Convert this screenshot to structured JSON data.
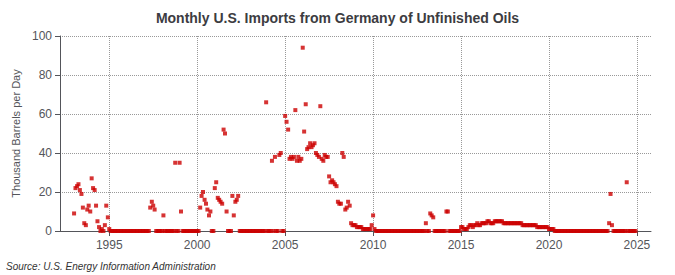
{
  "chart_data": {
    "type": "scatter",
    "title": "Monthly U.S. Imports from Germany of Unfinished Oils",
    "ylabel": "Thousand Barrels per Day",
    "annotation": "Source: U.S. Energy Information Administration",
    "color": "#cc0000",
    "marker": "square",
    "grid": true,
    "xlim": [
      1992.2,
      2025.8
    ],
    "xticks": [
      1995,
      2000,
      2005,
      2010,
      2015,
      2020,
      2025
    ],
    "ylim": [
      0,
      100
    ],
    "yticks": [
      0,
      20,
      40,
      60,
      80,
      100
    ],
    "x": [
      1993.0,
      1993.08,
      1993.17,
      1993.25,
      1993.33,
      1993.42,
      1993.5,
      1993.58,
      1993.67,
      1993.75,
      1993.83,
      1993.92,
      1994.0,
      1994.08,
      1994.17,
      1994.25,
      1994.33,
      1994.42,
      1994.5,
      1994.58,
      1994.67,
      1994.75,
      1994.83,
      1994.92,
      1995.0,
      1995.08,
      1995.17,
      1995.25,
      1995.33,
      1995.42,
      1995.5,
      1995.58,
      1995.67,
      1995.75,
      1995.83,
      1995.92,
      1996.0,
      1996.08,
      1996.17,
      1996.25,
      1996.33,
      1996.42,
      1996.5,
      1996.58,
      1996.67,
      1996.75,
      1996.83,
      1996.92,
      1997.0,
      1997.08,
      1997.17,
      1997.25,
      1997.33,
      1997.42,
      1997.5,
      1997.58,
      1997.67,
      1997.75,
      1997.83,
      1997.92,
      1998.0,
      1998.08,
      1998.17,
      1998.25,
      1998.33,
      1998.42,
      1998.5,
      1998.58,
      1998.67,
      1998.75,
      1998.83,
      1998.92,
      1999.0,
      1999.08,
      1999.17,
      1999.25,
      1999.33,
      1999.42,
      1999.5,
      1999.58,
      1999.67,
      1999.75,
      1999.83,
      1999.92,
      2000.0,
      2000.08,
      2000.17,
      2000.25,
      2000.33,
      2000.42,
      2000.5,
      2000.58,
      2000.67,
      2000.75,
      2000.83,
      2000.92,
      2001.0,
      2001.08,
      2001.17,
      2001.25,
      2001.33,
      2001.42,
      2001.5,
      2001.58,
      2001.67,
      2001.75,
      2001.83,
      2001.92,
      2002.0,
      2002.08,
      2002.17,
      2002.25,
      2002.33,
      2002.42,
      2002.5,
      2002.58,
      2002.67,
      2002.75,
      2002.83,
      2002.92,
      2003.0,
      2003.08,
      2003.17,
      2003.25,
      2003.33,
      2003.42,
      2003.5,
      2003.58,
      2003.67,
      2003.75,
      2003.83,
      2003.92,
      2004.0,
      2004.08,
      2004.17,
      2004.25,
      2004.33,
      2004.42,
      2004.5,
      2004.58,
      2004.67,
      2004.75,
      2004.83,
      2004.92,
      2005.0,
      2005.08,
      2005.17,
      2005.25,
      2005.33,
      2005.42,
      2005.5,
      2005.58,
      2005.67,
      2005.75,
      2005.83,
      2005.92,
      2006.0,
      2006.08,
      2006.17,
      2006.25,
      2006.33,
      2006.42,
      2006.5,
      2006.58,
      2006.67,
      2006.75,
      2006.83,
      2006.92,
      2007.0,
      2007.08,
      2007.17,
      2007.25,
      2007.33,
      2007.42,
      2007.5,
      2007.58,
      2007.67,
      2007.75,
      2007.83,
      2007.92,
      2008.0,
      2008.08,
      2008.17,
      2008.25,
      2008.33,
      2008.42,
      2008.5,
      2008.58,
      2008.67,
      2008.75,
      2008.83,
      2008.92,
      2009.0,
      2009.08,
      2009.17,
      2009.25,
      2009.33,
      2009.42,
      2009.5,
      2009.58,
      2009.67,
      2009.75,
      2009.83,
      2009.92,
      2010.0,
      2010.08,
      2010.17,
      2010.25,
      2010.33,
      2010.42,
      2010.5,
      2010.58,
      2010.67,
      2010.75,
      2010.83,
      2010.92,
      2011.0,
      2011.08,
      2011.17,
      2011.25,
      2011.33,
      2011.42,
      2011.5,
      2011.58,
      2011.67,
      2011.75,
      2011.83,
      2011.92,
      2012.0,
      2012.08,
      2012.17,
      2012.25,
      2012.33,
      2012.42,
      2012.5,
      2012.58,
      2012.67,
      2012.75,
      2012.83,
      2012.92,
      2013.0,
      2013.08,
      2013.17,
      2013.25,
      2013.33,
      2013.42,
      2013.5,
      2013.58,
      2013.67,
      2013.75,
      2013.83,
      2013.92,
      2014.0,
      2014.08,
      2014.17,
      2014.25,
      2014.33,
      2014.42,
      2014.5,
      2014.58,
      2014.67,
      2014.75,
      2014.83,
      2014.92,
      2015.0,
      2015.08,
      2015.17,
      2015.25,
      2015.33,
      2015.42,
      2015.5,
      2015.58,
      2015.67,
      2015.75,
      2015.83,
      2015.92,
      2016.0,
      2016.08,
      2016.17,
      2016.25,
      2016.33,
      2016.42,
      2016.5,
      2016.58,
      2016.67,
      2016.75,
      2016.83,
      2016.92,
      2017.0,
      2017.08,
      2017.17,
      2017.25,
      2017.33,
      2017.42,
      2017.5,
      2017.58,
      2017.67,
      2017.75,
      2017.83,
      2017.92,
      2018.0,
      2018.08,
      2018.17,
      2018.25,
      2018.33,
      2018.42,
      2018.5,
      2018.58,
      2018.67,
      2018.75,
      2018.83,
      2018.92,
      2019.0,
      2019.08,
      2019.17,
      2019.25,
      2019.33,
      2019.42,
      2019.5,
      2019.58,
      2019.67,
      2019.75,
      2019.83,
      2019.92,
      2020.0,
      2020.08,
      2020.17,
      2020.25,
      2020.33,
      2020.42,
      2020.5,
      2020.58,
      2020.67,
      2020.75,
      2020.83,
      2020.92,
      2021.0,
      2021.08,
      2021.17,
      2021.25,
      2021.33,
      2021.42,
      2021.5,
      2021.58,
      2021.67,
      2021.75,
      2021.83,
      2021.92,
      2022.0,
      2022.08,
      2022.17,
      2022.25,
      2022.33,
      2022.42,
      2022.5,
      2022.58,
      2022.67,
      2022.75,
      2022.83,
      2022.92,
      2023.0,
      2023.08,
      2023.17,
      2023.25,
      2023.33,
      2023.42,
      2023.5,
      2023.58,
      2023.67,
      2023.75,
      2023.83,
      2023.92,
      2024.0,
      2024.08,
      2024.17,
      2024.25,
      2024.33,
      2024.42,
      2024.5,
      2024.58,
      2024.67,
      2024.75,
      2024.83,
      2024.92
    ],
    "values": [
      9,
      22,
      23,
      24,
      21,
      19,
      12,
      4,
      3,
      11,
      13,
      10,
      27,
      22,
      21,
      13,
      5,
      2,
      0,
      1,
      0,
      3,
      13,
      7,
      1,
      0,
      0,
      0,
      0,
      0,
      0,
      0,
      0,
      0,
      0,
      0,
      0,
      0,
      0,
      0,
      0,
      0,
      0,
      0,
      0,
      0,
      0,
      0,
      0,
      0,
      0,
      0,
      12,
      15,
      13,
      11,
      0,
      0,
      0,
      0,
      0,
      8,
      0,
      0,
      0,
      0,
      0,
      0,
      0,
      35,
      0,
      0,
      35,
      10,
      0,
      0,
      0,
      0,
      0,
      0,
      0,
      0,
      0,
      0,
      0,
      0,
      12,
      18,
      20,
      16,
      14,
      11,
      8,
      10,
      0,
      0,
      22,
      25,
      17,
      16,
      15,
      14,
      52,
      50,
      10,
      0,
      0,
      0,
      18,
      8,
      15,
      16,
      18,
      0,
      0,
      0,
      0,
      0,
      0,
      0,
      0,
      0,
      0,
      0,
      0,
      0,
      0,
      0,
      0,
      0,
      0,
      66,
      0,
      0,
      0,
      36,
      0,
      38,
      0,
      0,
      39,
      40,
      0,
      0,
      59,
      56,
      52,
      37,
      38,
      37,
      38,
      62,
      36,
      38,
      36,
      37,
      94,
      51,
      65,
      42,
      43,
      45,
      43,
      44,
      45,
      40,
      39,
      38,
      64,
      37,
      36,
      39,
      38,
      38,
      28,
      25,
      26,
      25,
      24,
      23,
      15,
      14,
      14,
      40,
      38,
      11,
      12,
      15,
      13,
      4,
      3,
      3,
      3,
      2,
      2,
      2,
      2,
      1,
      1,
      1,
      1,
      1,
      1,
      3,
      8,
      1,
      0,
      0,
      0,
      0,
      0,
      0,
      0,
      0,
      0,
      0,
      0,
      0,
      0,
      0,
      0,
      0,
      0,
      0,
      0,
      0,
      0,
      0,
      0,
      0,
      0,
      0,
      0,
      0,
      0,
      0,
      0,
      0,
      0,
      0,
      4,
      0,
      0,
      9,
      8,
      7,
      0,
      0,
      0,
      0,
      0,
      0,
      0,
      0,
      10,
      10,
      0,
      0,
      0,
      0,
      0,
      0,
      0,
      0,
      2,
      2,
      1,
      1,
      1,
      2,
      3,
      3,
      2,
      3,
      3,
      4,
      3,
      3,
      4,
      4,
      4,
      4,
      5,
      5,
      4,
      4,
      4,
      5,
      5,
      5,
      5,
      5,
      5,
      4,
      4,
      4,
      4,
      4,
      4,
      4,
      4,
      4,
      4,
      4,
      4,
      4,
      3,
      3,
      3,
      3,
      3,
      3,
      3,
      3,
      3,
      3,
      2,
      2,
      2,
      2,
      2,
      2,
      2,
      2,
      1,
      1,
      1,
      1,
      0,
      0,
      0,
      0,
      0,
      0,
      0,
      0,
      0,
      0,
      0,
      0,
      0,
      0,
      0,
      0,
      0,
      0,
      0,
      0,
      0,
      0,
      0,
      0,
      0,
      0,
      0,
      0,
      0,
      0,
      0,
      0,
      0,
      0,
      0,
      0,
      0,
      4,
      19,
      3,
      0,
      0,
      0,
      0,
      0,
      0,
      0,
      0,
      0,
      25,
      0,
      0,
      0,
      0,
      0,
      0
    ]
  }
}
